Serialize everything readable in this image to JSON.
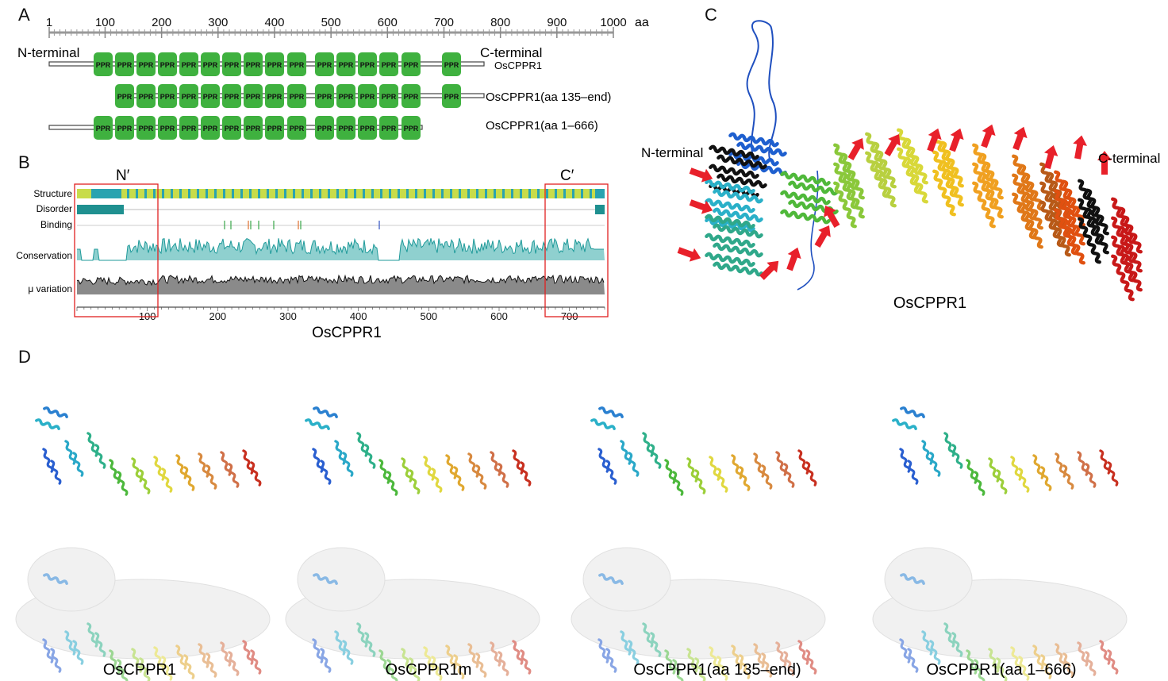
{
  "panels": {
    "A": {
      "letter": "A",
      "axis": {
        "unit": "aa",
        "ticks": [
          "1",
          "100",
          "200",
          "300",
          "400",
          "500",
          "600",
          "700",
          "800",
          "900",
          "1000"
        ]
      },
      "n_label": "N-terminal",
      "c_label": "C-terminal",
      "motif_label": "PPR",
      "constructs": [
        {
          "label": "OsCPPR1"
        },
        {
          "label": "OsCPPR1(aa 135–end)"
        },
        {
          "label": "OsCPPR1(aa 1–666)"
        }
      ]
    },
    "B": {
      "letter": "B",
      "n_region": "N′",
      "c_region": "C′",
      "tracks": [
        "Structure",
        "Disorder",
        "Binding",
        "Conservation",
        "μ variation"
      ],
      "x_ticks": [
        "100",
        "200",
        "300",
        "400",
        "500",
        "600",
        "700"
      ],
      "protein": "OsCPPR1"
    },
    "C": {
      "letter": "C",
      "n_label": "N-terminal",
      "c_label": "C-terminal",
      "protein": "OsCPPR1"
    },
    "D": {
      "letter": "D",
      "labels": [
        "OsCPPR1",
        "OsCPPR1m",
        "OsCPPR1(aa 135–end)",
        "OsCPPR1(aa 1–666)"
      ]
    }
  },
  "colors": {
    "ppr_green": "#3fb13f",
    "teal": "#2a9d9d",
    "lime": "#c8dc4a",
    "red_box": "#e02020",
    "arrow": "#e8202a"
  }
}
